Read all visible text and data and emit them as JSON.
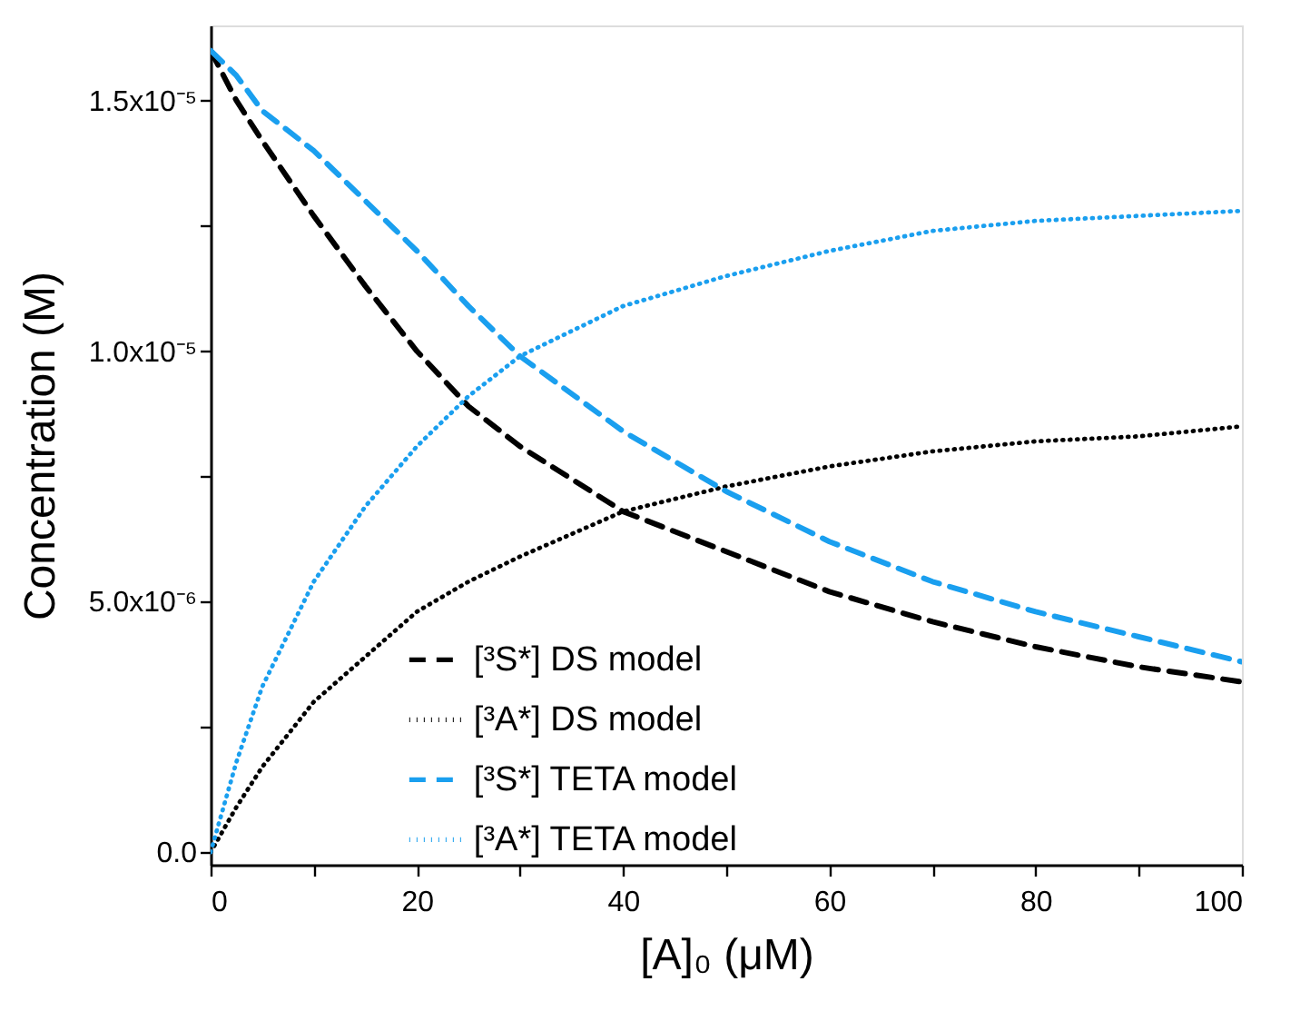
{
  "chart_data": {
    "type": "line",
    "xlabel": "[A]₀ (μM)",
    "ylabel": "Concentration (M)",
    "x": [
      0,
      2.5,
      5,
      10,
      15,
      20,
      25,
      30,
      40,
      50,
      60,
      70,
      80,
      90,
      100
    ],
    "series": [
      {
        "name": "[³S*] DS model",
        "color": "#000000",
        "line_style": "dashed",
        "values": [
          1.6e-05,
          1.5e-05,
          1.42e-05,
          1.27e-05,
          1.13e-05,
          1e-05,
          8.9e-06,
          8.1e-06,
          6.8e-06,
          6e-06,
          5.2e-06,
          4.6e-06,
          4.1e-06,
          3.7e-06,
          3.4e-06
        ]
      },
      {
        "name": "[³A*] DS model",
        "color": "#000000",
        "line_style": "dotted",
        "values": [
          0,
          9e-07,
          1.7e-06,
          3e-06,
          3.9e-06,
          4.8e-06,
          5.4e-06,
          5.9e-06,
          6.8e-06,
          7.3e-06,
          7.7e-06,
          8e-06,
          8.2e-06,
          8.3e-06,
          8.5e-06
        ]
      },
      {
        "name": "[³S*] TETA model",
        "color": "#1a9fef",
        "line_style": "dashed",
        "values": [
          1.6e-05,
          1.55e-05,
          1.48e-05,
          1.4e-05,
          1.3e-05,
          1.2e-05,
          1.09e-05,
          9.9e-06,
          8.4e-06,
          7.2e-06,
          6.2e-06,
          5.4e-06,
          4.8e-06,
          4.3e-06,
          3.8e-06
        ]
      },
      {
        "name": "[³A*] TETA model",
        "color": "#1a9fef",
        "line_style": "dotted",
        "values": [
          0,
          1.8e-06,
          3.3e-06,
          5.4e-06,
          6.9e-06,
          8.1e-06,
          9.1e-06,
          9.9e-06,
          1.09e-05,
          1.15e-05,
          1.2e-05,
          1.24e-05,
          1.26e-05,
          1.27e-05,
          1.28e-05
        ]
      }
    ],
    "xlim": [
      0,
      100
    ],
    "xticks": [
      0,
      {
        "value": 10,
        "label": null
      },
      20,
      {
        "value": 30,
        "label": null
      },
      40,
      {
        "value": 50,
        "label": null
      },
      60,
      {
        "value": 70,
        "label": null
      },
      80,
      {
        "value": 90,
        "label": null
      },
      100
    ],
    "ylim": [
      -2.5e-07,
      1.65e-05
    ],
    "yticks": [
      {
        "value": 0,
        "label": "0.0"
      },
      {
        "value": 2.5e-06,
        "label": null
      },
      {
        "value": 5e-06,
        "label": "5.0x10⁻⁶"
      },
      {
        "value": 7.5e-06,
        "label": null
      },
      {
        "value": 1e-05,
        "label": "1.0x10⁻⁵"
      },
      {
        "value": 1.25e-05,
        "label": null
      },
      {
        "value": 1.5e-05,
        "label": "1.5x10⁻⁵"
      }
    ],
    "grid": false,
    "legend": "bottom",
    "marker": "none"
  }
}
